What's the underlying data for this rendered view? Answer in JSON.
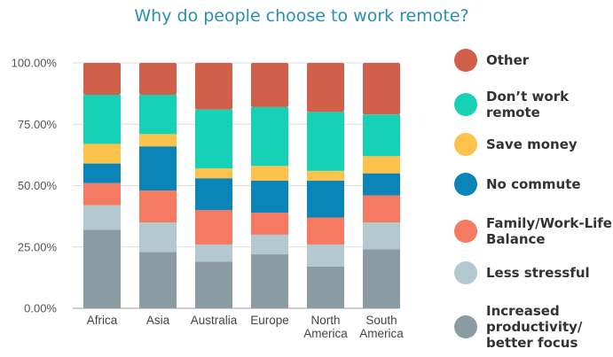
{
  "chart_data": {
    "type": "bar",
    "stacked": true,
    "percent": true,
    "title": "Why do people choose to work remote?",
    "xlabel": "",
    "ylabel": "",
    "ylim": [
      0,
      100
    ],
    "yticks": [
      "0.00%",
      "25.00%",
      "50.00%",
      "75.00%",
      "100.00%"
    ],
    "grid": true,
    "legend_position": "right",
    "categories": [
      [
        "Africa"
      ],
      [
        "Asia"
      ],
      [
        "Australia"
      ],
      [
        "Europe"
      ],
      [
        "North",
        "America"
      ],
      [
        "South",
        "America"
      ]
    ],
    "series": [
      {
        "name": "Increased productivity/ better focus",
        "legend_lines": [
          "Increased",
          "productivity/",
          "better focus"
        ],
        "color": "#8a9ca2",
        "values": [
          32,
          23,
          19,
          22,
          17,
          24
        ]
      },
      {
        "name": "Less stressful",
        "legend_lines": [
          "Less stressful"
        ],
        "color": "#b3c9cf",
        "values": [
          10,
          12,
          7,
          8,
          9,
          11
        ]
      },
      {
        "name": "Family/Work-Life Balance",
        "legend_lines": [
          "Family/Work-Life",
          "Balance"
        ],
        "color": "#f67a62",
        "values": [
          9,
          13,
          14,
          9,
          11,
          11
        ]
      },
      {
        "name": "No commute",
        "legend_lines": [
          "No commute"
        ],
        "color": "#0b85b8",
        "values": [
          8,
          18,
          13,
          13,
          15,
          9
        ]
      },
      {
        "name": "Save money",
        "legend_lines": [
          "Save money"
        ],
        "color": "#fdc24b",
        "values": [
          8,
          5,
          4,
          6,
          4,
          7
        ]
      },
      {
        "name": "Don’t work remote",
        "legend_lines": [
          "Don’t work",
          "remote"
        ],
        "color": "#17d1b7",
        "values": [
          20,
          16,
          24,
          24,
          24,
          17
        ]
      },
      {
        "name": "Other",
        "legend_lines": [
          "Other"
        ],
        "color": "#d1604b",
        "values": [
          13,
          13,
          19,
          18,
          20,
          21
        ]
      }
    ]
  }
}
